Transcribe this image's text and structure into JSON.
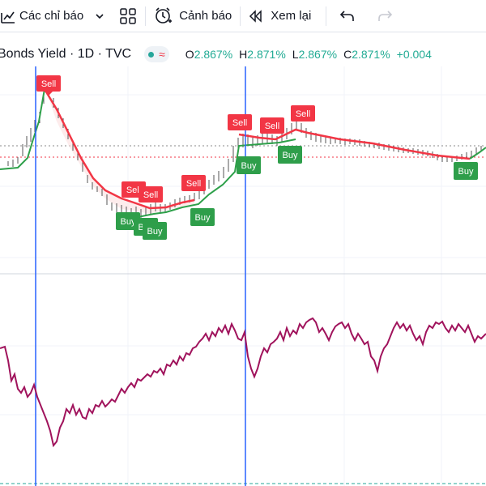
{
  "toolbar": {
    "indicators_label": "Các chỉ báo",
    "alerts_label": "Cảnh báo",
    "replay_label": "Xem lại"
  },
  "legend": {
    "symbol_text": "Bonds Yield · 1D · TVC",
    "open_label": "O",
    "open_value": "2.867%",
    "high_label": "H",
    "high_value": "2.871%",
    "low_label": "L",
    "low_value": "2.867%",
    "close_label": "C",
    "close_value": "2.871%",
    "change_value": "+0.004"
  },
  "signals": {
    "sell_label": "Sell",
    "buy_label": "Buy"
  },
  "colors": {
    "up": "#22ab94",
    "sell": "#f23645",
    "buy": "#2e9e4a",
    "oscillator": "#a0135c",
    "vertical_marker": "#2962ff"
  },
  "icons": [
    "indicators-icon",
    "chevron-down-icon",
    "layouts-grid-icon",
    "alert-clock-icon",
    "replay-icon",
    "undo-icon",
    "redo-icon"
  ]
}
